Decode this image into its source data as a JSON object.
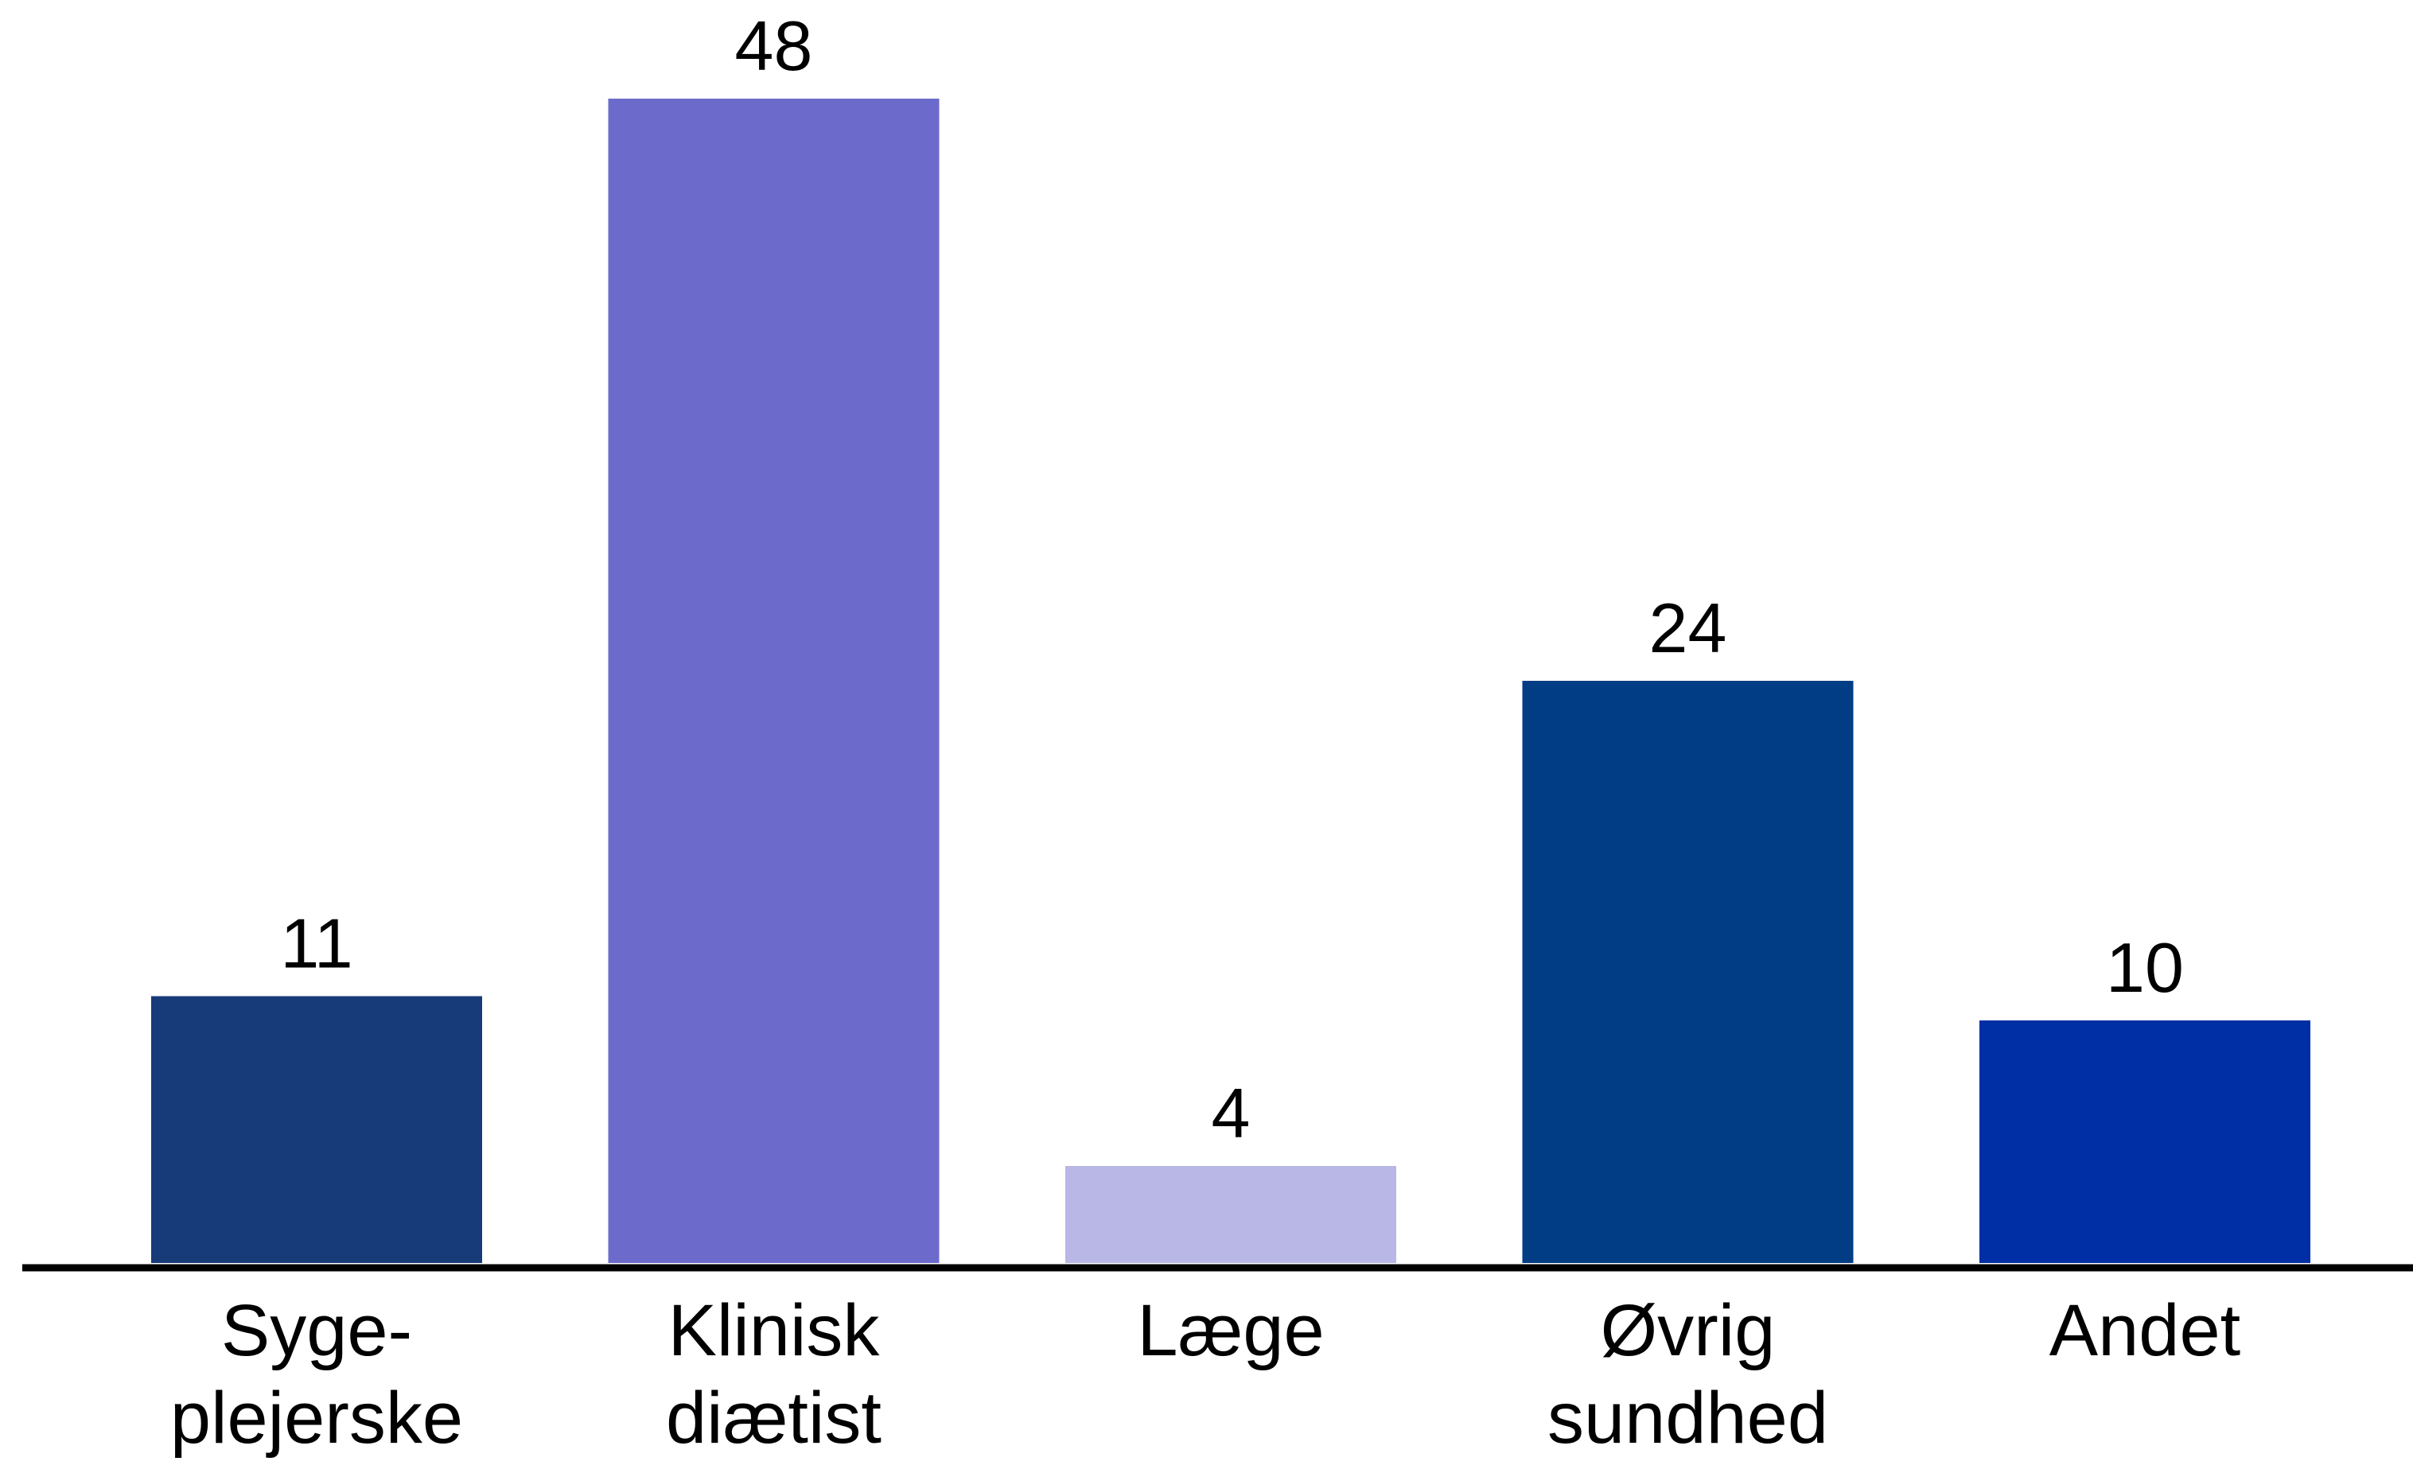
{
  "chart_data": {
    "type": "bar",
    "title": "",
    "xlabel": "",
    "ylabel": "",
    "categories": [
      [
        "Syge-",
        "plejerske"
      ],
      [
        "Klinisk",
        "diætist"
      ],
      [
        "Læge"
      ],
      [
        "Øvrig",
        "sundhed"
      ],
      [
        "Andet"
      ]
    ],
    "values": [
      11,
      48,
      4,
      24,
      10
    ],
    "value_labels": [
      "11",
      "48",
      "4",
      "24",
      "10"
    ],
    "colors": [
      "#173A78",
      "#6C6BCB",
      "#B8B7E5",
      "#003D85",
      "#002FA5"
    ],
    "ylim": [
      0,
      48
    ],
    "grid": false,
    "legend": "none",
    "axis_color": "#000000"
  }
}
